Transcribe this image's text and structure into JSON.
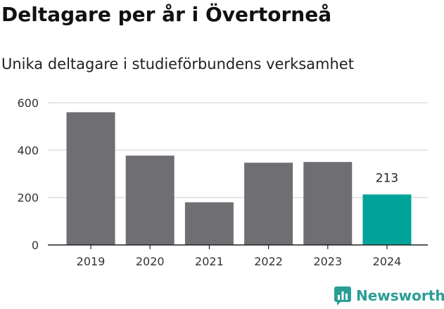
{
  "page": {
    "title": "Deltagare per år i Övertorneå",
    "subtitle": "Unika deltagare i studieförbundens verksamhet",
    "logo_text": "Newsworthy"
  },
  "colors": {
    "bar": "#6e6e73",
    "highlight": "#00a39a",
    "grid": "#dddddd",
    "axis": "#222222",
    "brand": "#2a9d96"
  },
  "chart_data": {
    "type": "bar",
    "title": "Deltagare per år i Övertorneå",
    "subtitle": "Unika deltagare i studieförbundens verksamhet",
    "categories": [
      "2019",
      "2020",
      "2021",
      "2022",
      "2023",
      "2024"
    ],
    "values": [
      560,
      377,
      180,
      347,
      350,
      213
    ],
    "highlight_index": 5,
    "data_labels": [
      {
        "index": 5,
        "text": "213"
      }
    ],
    "yticks": [
      0,
      200,
      400,
      600
    ],
    "ylim": [
      0,
      600
    ],
    "grid": true,
    "xlabel": "",
    "ylabel": ""
  }
}
